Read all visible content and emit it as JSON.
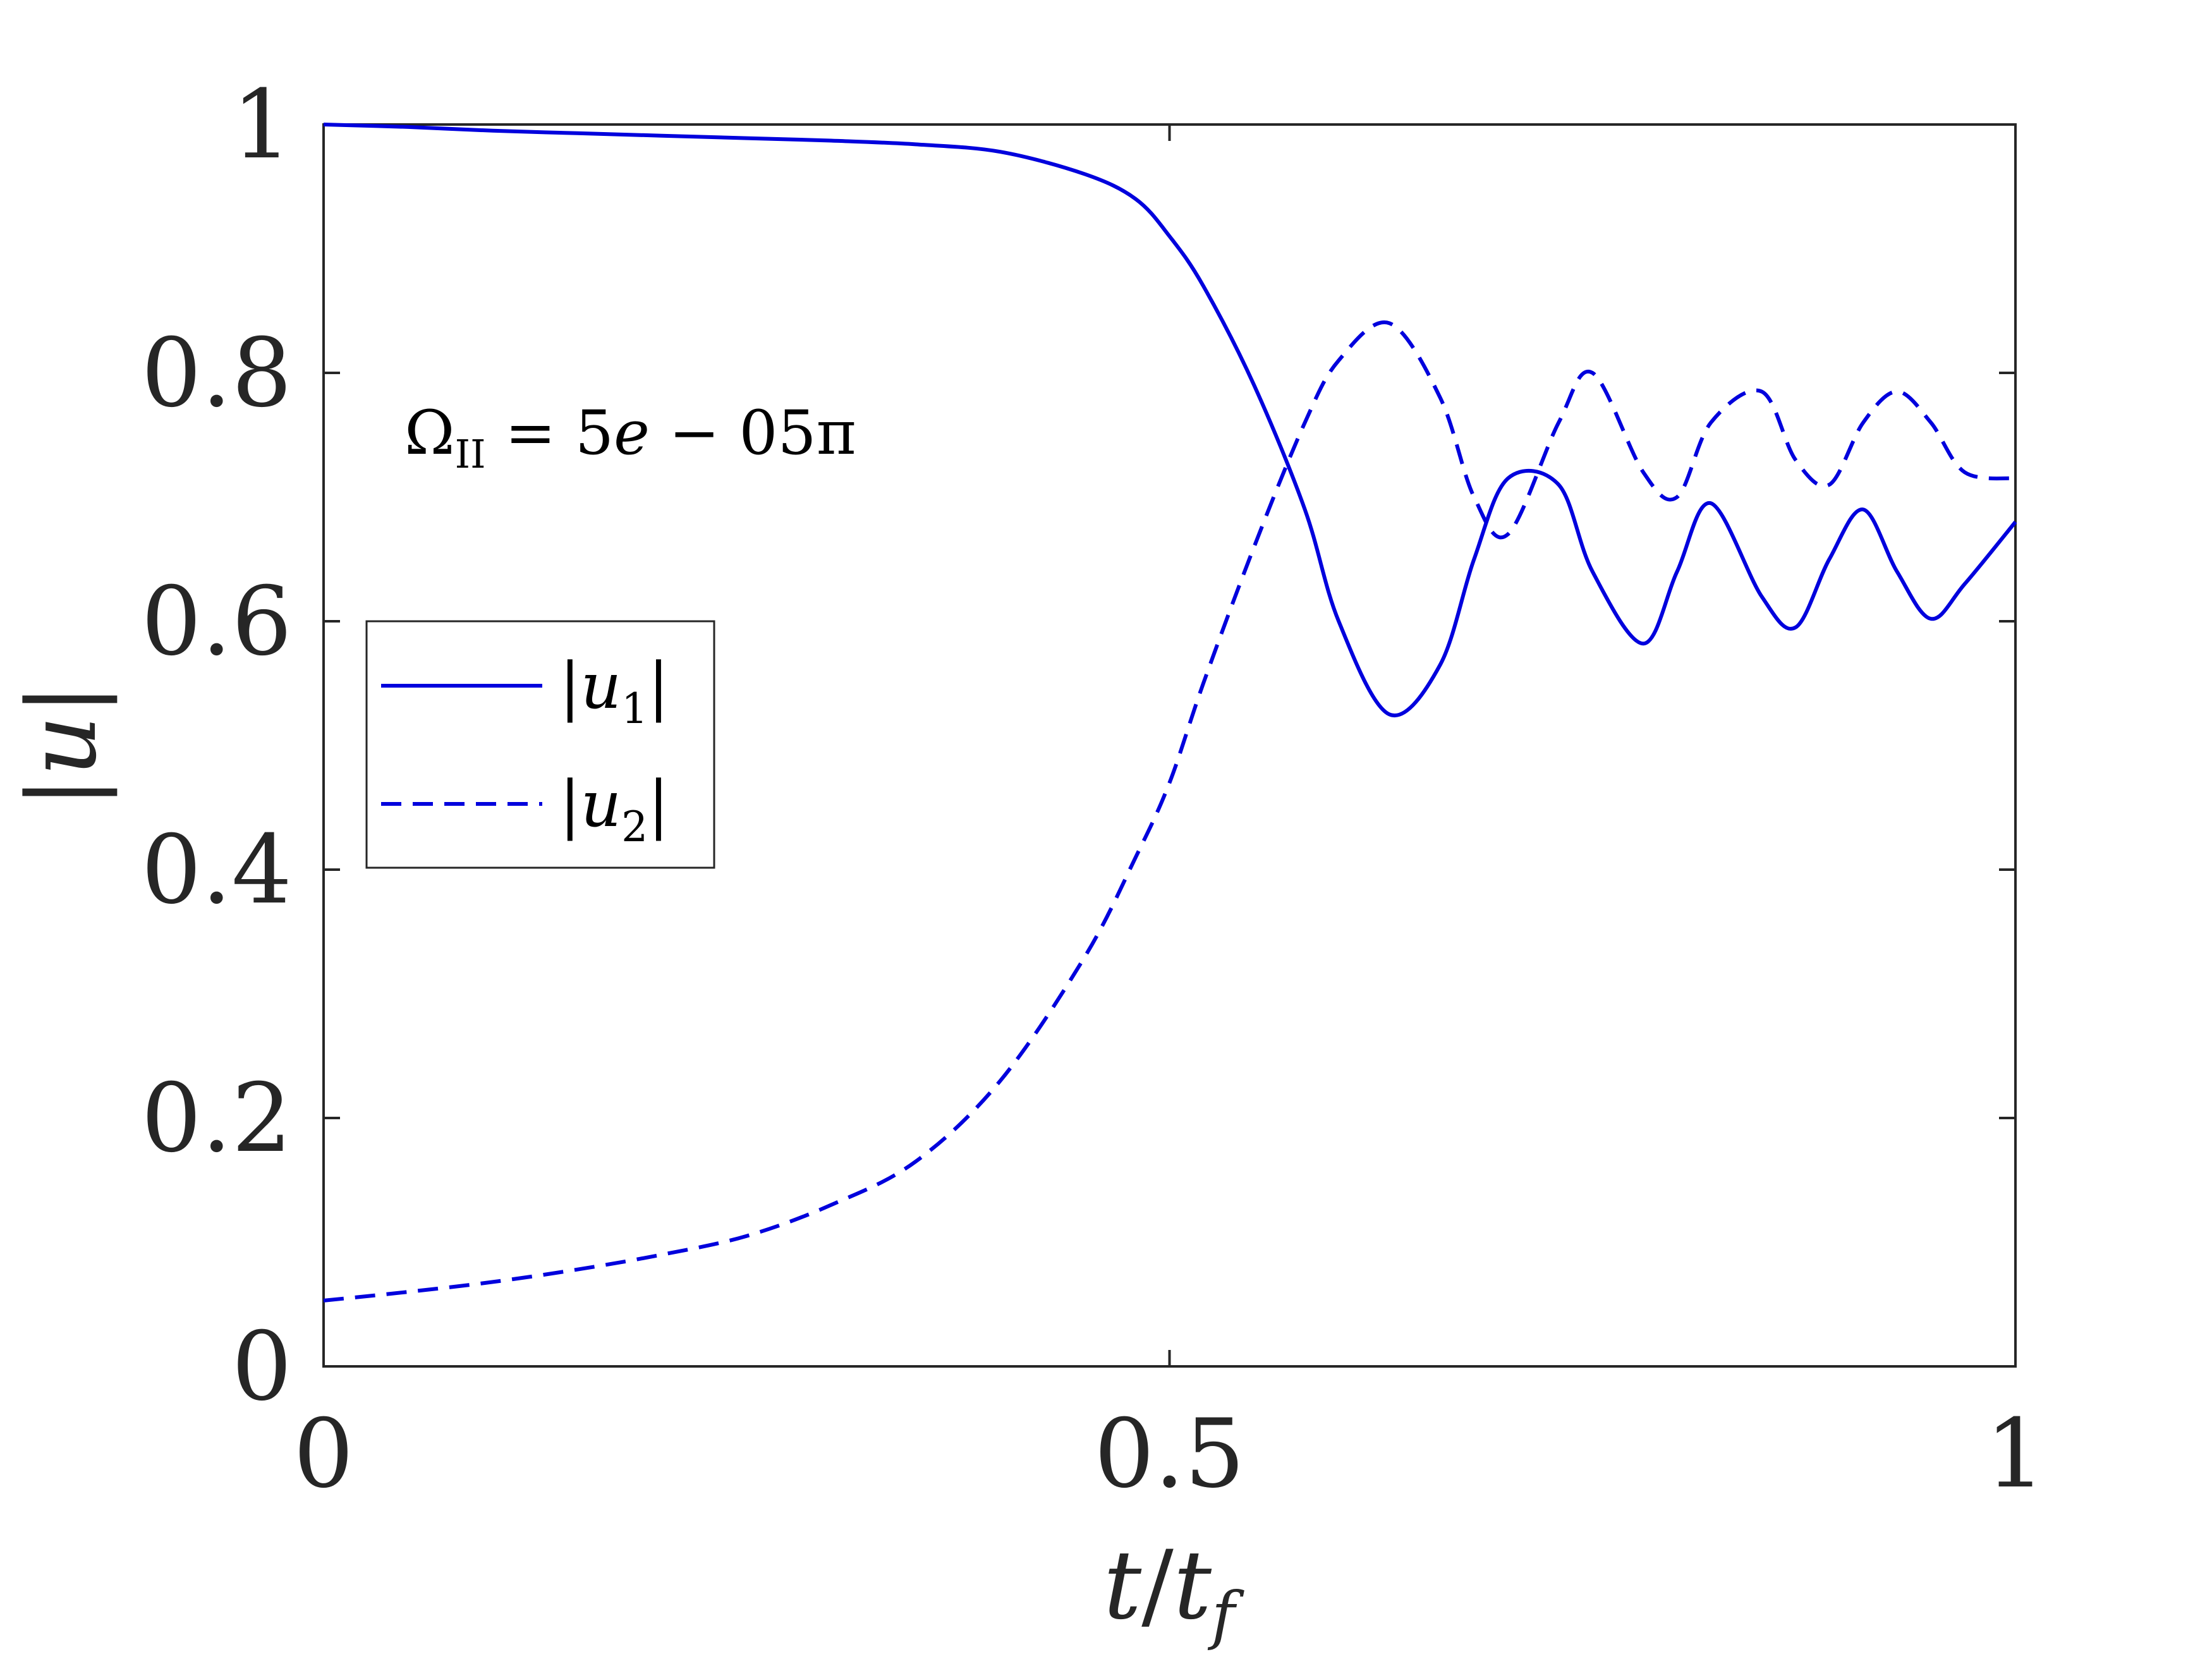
{
  "chart_data": {
    "type": "line",
    "x": [
      0,
      0.05,
      0.1,
      0.15,
      0.2,
      0.25,
      0.3,
      0.35,
      0.4,
      0.45,
      0.48,
      0.5,
      0.52,
      0.55,
      0.58,
      0.6,
      0.63,
      0.66,
      0.68,
      0.7,
      0.73,
      0.75,
      0.78,
      0.8,
      0.82,
      0.85,
      0.87,
      0.89,
      0.91,
      0.93,
      0.95,
      0.97,
      1.0
    ],
    "series": [
      {
        "name": "|u_1|",
        "style": "solid",
        "values": [
          1.0,
          0.998,
          0.995,
          0.993,
          0.991,
          0.989,
          0.987,
          0.984,
          0.978,
          0.96,
          0.94,
          0.91,
          0.87,
          0.79,
          0.69,
          0.6,
          0.525,
          0.565,
          0.65,
          0.715,
          0.71,
          0.64,
          0.582,
          0.64,
          0.695,
          0.62,
          0.595,
          0.65,
          0.69,
          0.64,
          0.602,
          0.63,
          0.68
        ]
      },
      {
        "name": "|u_2|",
        "style": "dashed",
        "values": [
          0.053,
          0.06,
          0.068,
          0.078,
          0.09,
          0.105,
          0.13,
          0.165,
          0.23,
          0.33,
          0.41,
          0.47,
          0.55,
          0.66,
          0.76,
          0.81,
          0.84,
          0.78,
          0.7,
          0.67,
          0.76,
          0.8,
          0.72,
          0.7,
          0.76,
          0.785,
          0.73,
          0.71,
          0.76,
          0.785,
          0.76,
          0.72,
          0.715
        ]
      }
    ],
    "xlabel": "t/t_f",
    "ylabel": "|u|",
    "xlim": [
      0,
      1
    ],
    "ylim": [
      0,
      1
    ],
    "xticks": [
      "0",
      "0.5",
      "1"
    ],
    "yticks": [
      "0",
      "0.2",
      "0.4",
      "0.6",
      "0.8",
      "1"
    ],
    "annotation": "Ω_II = 5e − 05π",
    "legend_position": "left",
    "grid": false,
    "line_color": "#0000dd"
  }
}
